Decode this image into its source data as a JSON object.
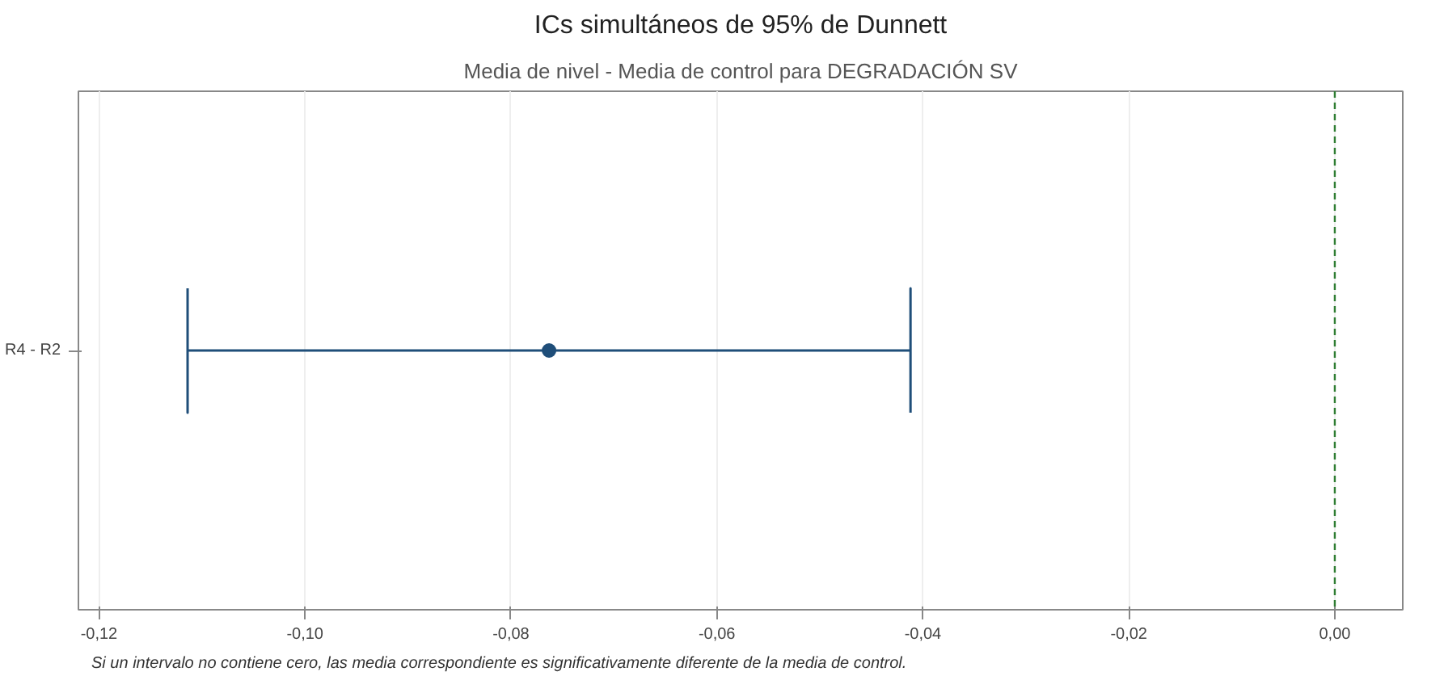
{
  "chart_data": {
    "type": "scatter",
    "title": "ICs simultáneos de 95% de Dunnett",
    "subtitle": "Media de nivel - Media de control para DEGRADACIÓN SV",
    "orientation": "horizontal",
    "categories": [
      "R4 - R2"
    ],
    "series": [
      {
        "color": "#1f4e79",
        "values": [
          -0.0763
        ],
        "errors": [
          [
            -0.1114,
            -0.0412
          ]
        ]
      }
    ],
    "xlim": [
      -0.122,
      0.0066
    ],
    "xticks": [
      {
        "value": -0.12,
        "label": "-0,12"
      },
      {
        "value": -0.1,
        "label": "-0,10"
      },
      {
        "value": -0.08,
        "label": "-0,08"
      },
      {
        "value": -0.06,
        "label": "-0,06"
      },
      {
        "value": -0.04,
        "label": "-0,04"
      },
      {
        "value": -0.02,
        "label": "-0,02"
      },
      {
        "value": 0,
        "label": "0,00"
      }
    ],
    "ref_lines": [
      {
        "axis": "x",
        "value": 0,
        "color": "#2e7d32",
        "line_style": "dashed"
      }
    ],
    "grid": "x",
    "marker": "circle",
    "annotations": [
      "Si un intervalo no contiene cero, las media correspondiente es significativamente diferente de la media de control."
    ]
  }
}
